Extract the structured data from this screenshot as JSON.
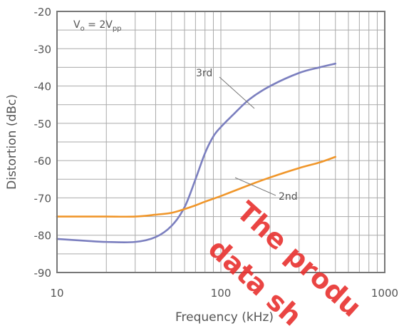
{
  "chart_data": {
    "type": "line",
    "title": "",
    "xlabel": "Frequency (kHz)",
    "ylabel": "Distortion (dBc)",
    "xscale": "log",
    "xlim": [
      10,
      1000
    ],
    "ylim": [
      -90,
      -20
    ],
    "x_ticks": [
      10,
      100,
      1000
    ],
    "y_ticks": [
      -20,
      -30,
      -40,
      -50,
      -60,
      -70,
      -80,
      -90
    ],
    "grid": true,
    "condition": {
      "prefix": "V",
      "sub1": "o",
      "mid": " = 2V",
      "sub2": "pp"
    },
    "series": [
      {
        "name": "3rd",
        "color": "#7b7fbf",
        "x": [
          10,
          15,
          20,
          30,
          40,
          50,
          60,
          70,
          80,
          90,
          100,
          120,
          150,
          200,
          300,
          400,
          500
        ],
        "y": [
          -81,
          -81.5,
          -81.8,
          -81.8,
          -80.5,
          -77.5,
          -72.5,
          -65,
          -58,
          -53.5,
          -51,
          -47.5,
          -43.5,
          -40,
          -36.5,
          -35,
          -34
        ]
      },
      {
        "name": "2nd",
        "color": "#f0962a",
        "x": [
          10,
          15,
          20,
          30,
          40,
          50,
          60,
          70,
          80,
          100,
          150,
          200,
          300,
          400,
          500
        ],
        "y": [
          -75,
          -75,
          -75,
          -75,
          -74.5,
          -74,
          -73,
          -72,
          -71,
          -69.5,
          -66.5,
          -64.5,
          -62,
          -60.5,
          -59
        ]
      }
    ],
    "annotations": [
      {
        "text": "3rd",
        "series": "3rd"
      },
      {
        "text": "2nd",
        "series": "2nd"
      }
    ],
    "watermark": [
      "The produ",
      "data sh"
    ],
    "watermark_color": "#e8312f"
  }
}
